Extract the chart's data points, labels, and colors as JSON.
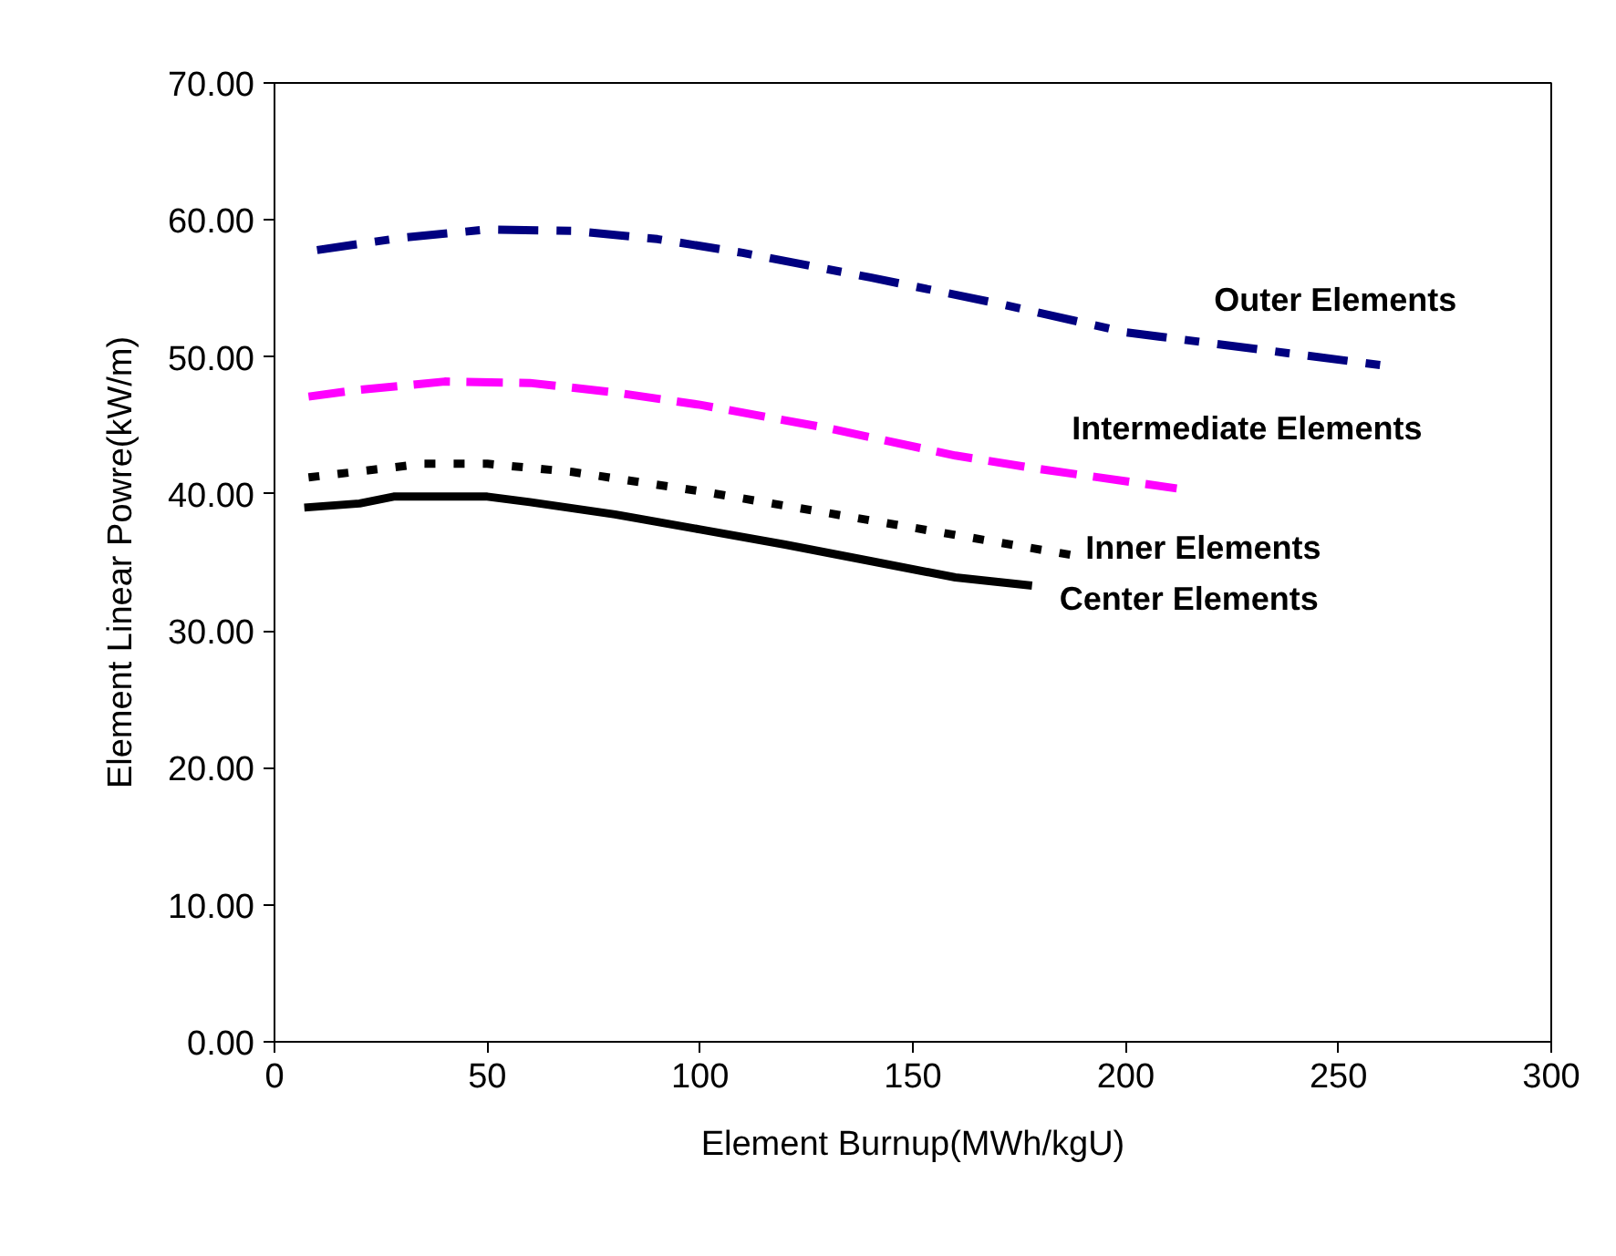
{
  "chart_data": {
    "type": "line",
    "xlabel": "Element Burnup(MWh/kgU)",
    "ylabel": "Element Linear Powre(kW/m)",
    "xlim": [
      0,
      300
    ],
    "ylim": [
      0,
      70
    ],
    "xticks": [
      0,
      50,
      100,
      150,
      200,
      250,
      300
    ],
    "yticks": [
      {
        "value": 0,
        "label": "0.00"
      },
      {
        "value": 10,
        "label": "10.00"
      },
      {
        "value": 20,
        "label": "20.00"
      },
      {
        "value": 30,
        "label": "30.00"
      },
      {
        "value": 40,
        "label": "40.00"
      },
      {
        "value": 50,
        "label": "50.00"
      },
      {
        "value": 60,
        "label": "60.00"
      },
      {
        "value": 70,
        "label": "70.00"
      }
    ],
    "grid": false,
    "series": [
      {
        "name": "Outer Elements",
        "color": "#000080",
        "line_style": "dashdot",
        "x": [
          10,
          30,
          50,
          70,
          90,
          110,
          140,
          170,
          200,
          260
        ],
        "values": [
          57.8,
          58.7,
          59.3,
          59.2,
          58.6,
          57.6,
          55.8,
          53.9,
          51.8,
          49.4
        ]
      },
      {
        "name": "Intermediate  Elements",
        "color": "#ff00ff",
        "line_style": "dashed",
        "x": [
          8,
          20,
          40,
          60,
          80,
          100,
          130,
          160,
          180,
          212
        ],
        "values": [
          47.1,
          47.6,
          48.2,
          48.1,
          47.4,
          46.5,
          44.8,
          42.8,
          41.8,
          40.4
        ]
      },
      {
        "name": "Inner Elements",
        "color": "#000000",
        "line_style": "dotted",
        "x": [
          8,
          35,
          50,
          70,
          100,
          130,
          160,
          188
        ],
        "values": [
          41.2,
          42.2,
          42.2,
          41.6,
          40.2,
          38.6,
          37.0,
          35.5
        ]
      },
      {
        "name": "Center  Elements",
        "color": "#000000",
        "line_style": "solid",
        "x": [
          7,
          20,
          28,
          50,
          60,
          80,
          100,
          120,
          140,
          160,
          178
        ],
        "values": [
          39.0,
          39.3,
          39.8,
          39.8,
          39.4,
          38.5,
          37.4,
          36.3,
          35.1,
          33.9,
          33.3
        ]
      }
    ]
  }
}
